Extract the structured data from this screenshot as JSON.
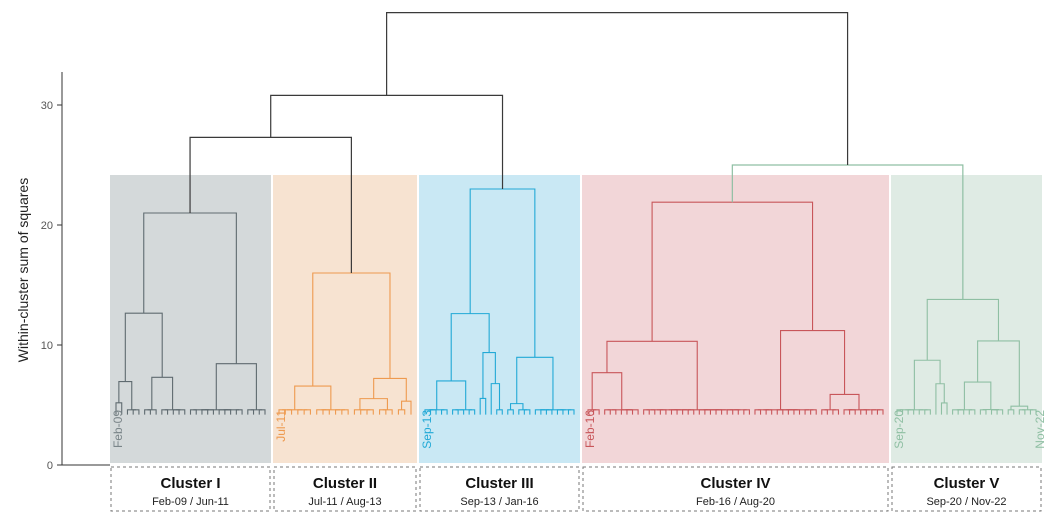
{
  "chart_data": {
    "type": "dendrogram",
    "ylabel": "Within-cluster sum of squares",
    "ylim": [
      0,
      38
    ],
    "yticks": [
      0,
      10,
      20,
      30
    ],
    "colors": {
      "root": "#3a3a3a",
      "cluster_I": "#5f6b70",
      "cluster_II": "#ee9a4f",
      "cluster_III": "#22a9d6",
      "cluster_IV": "#c8565a",
      "cluster_V": "#8fbfa3"
    },
    "clusters": [
      {
        "name": "Cluster I",
        "range": "Feb-09 / Jun-11",
        "start_label": "Feb-09",
        "end_label": "",
        "fill": "#d4d9da",
        "line": "#5f6b70",
        "label_color": "#7a8589",
        "leaves": 27,
        "top_merge": 21.0
      },
      {
        "name": "Cluster II",
        "range": "Jul-11 / Aug-13",
        "start_label": "Jul-11",
        "end_label": "",
        "fill": "#f7e3d1",
        "line": "#ee9a4f",
        "label_color": "#ee9a4f",
        "leaves": 22,
        "top_merge": 16.0
      },
      {
        "name": "Cluster III",
        "range": "Sep-13 / Jan-16",
        "start_label": "Sep-13",
        "end_label": "",
        "fill": "#c9e8f4",
        "line": "#22a9d6",
        "label_color": "#22a9d6",
        "leaves": 28,
        "top_merge": 23.0
      },
      {
        "name": "Cluster IV",
        "range": "Feb-16 / Aug-20",
        "start_label": "Feb-16",
        "end_label": "",
        "fill": "#f2d6d8",
        "line": "#c8565a",
        "label_color": "#c8565a",
        "leaves": 54,
        "top_merge": 21.9
      },
      {
        "name": "Cluster V",
        "range": "Sep-20 / Nov-22",
        "start_label": "Sep-20",
        "end_label": "Nov-22",
        "fill": "#dfebe4",
        "line": "#8fbfa3",
        "label_color": "#8fbfa3",
        "leaves": 26,
        "top_merge": 13.8
      }
    ],
    "merges": [
      {
        "join": [
          "Cluster I",
          "Cluster II"
        ],
        "height": 27.3,
        "color": "root"
      },
      {
        "join": [
          "Cluster I+II",
          "Cluster III"
        ],
        "height": 30.8,
        "color": "root"
      },
      {
        "join": [
          "Cluster IV",
          "Cluster V"
        ],
        "height": 25.0,
        "color": "cluster_V"
      },
      {
        "join": [
          "Cluster I+II+III",
          "Cluster IV+V"
        ],
        "height": 37.7,
        "color": "root"
      }
    ]
  }
}
